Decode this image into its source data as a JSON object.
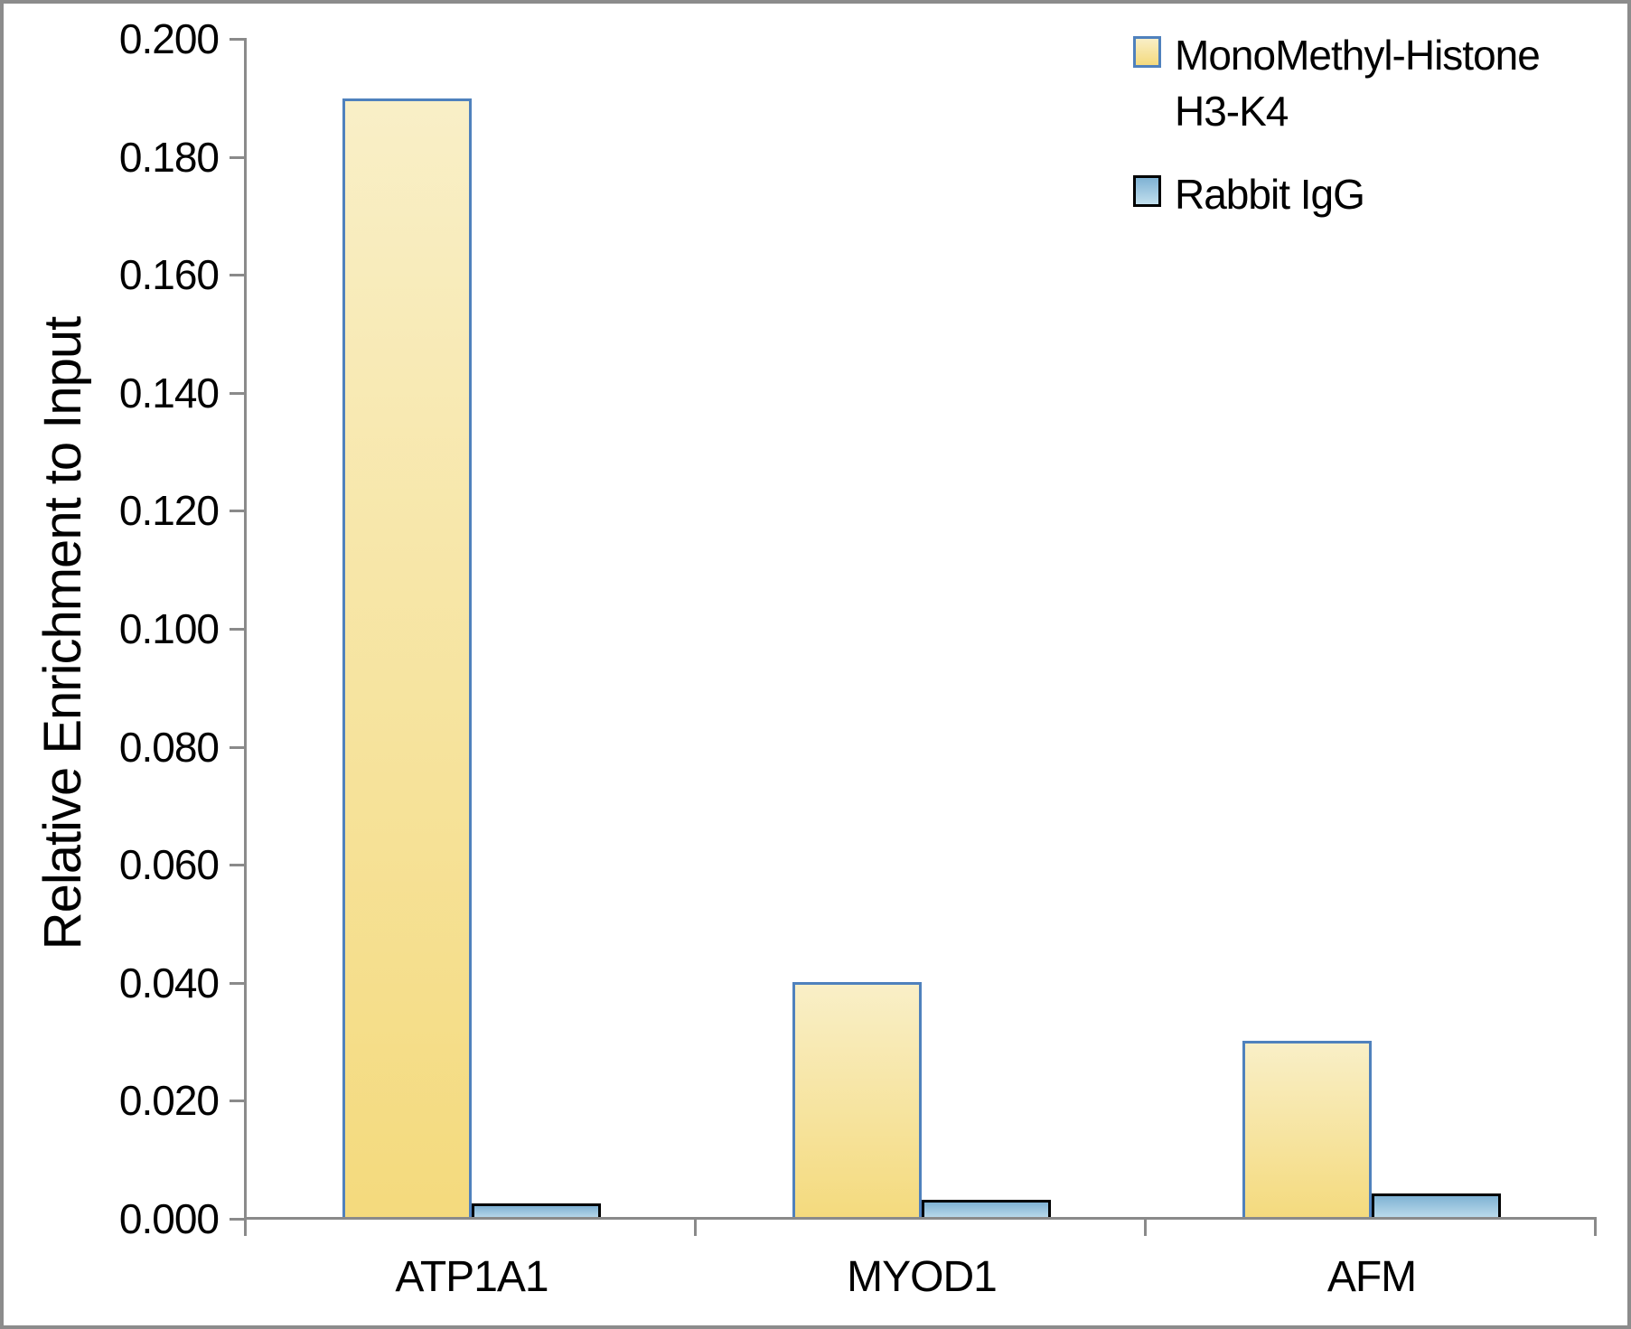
{
  "chart_data": {
    "type": "bar",
    "title": "",
    "xlabel": "",
    "ylabel": "Relative Enrichment to Input",
    "categories": [
      "ATP1A1",
      "MYOD1",
      "AFM"
    ],
    "series": [
      {
        "name": "MonoMethyl-Histone H3-K4",
        "values": [
          0.19,
          0.0402,
          0.0303
        ],
        "fill_top": "#f9efc7",
        "fill_bottom": "#f4da7d",
        "border": "#4f81bd"
      },
      {
        "name": "Rabbit IgG",
        "values": [
          0.0027,
          0.0034,
          0.0044
        ],
        "fill_top": "#7fb2d4",
        "fill_bottom": "#c2dfed",
        "border": "#000000"
      }
    ],
    "ylim": [
      0,
      0.2
    ],
    "ytick_step": 0.02,
    "yticks": [
      "0.000",
      "0.020",
      "0.040",
      "0.060",
      "0.080",
      "0.100",
      "0.120",
      "0.140",
      "0.160",
      "0.180",
      "0.200"
    ],
    "grid": "off",
    "legend_position": "top-right",
    "axis_color": "#8a8a8a"
  }
}
